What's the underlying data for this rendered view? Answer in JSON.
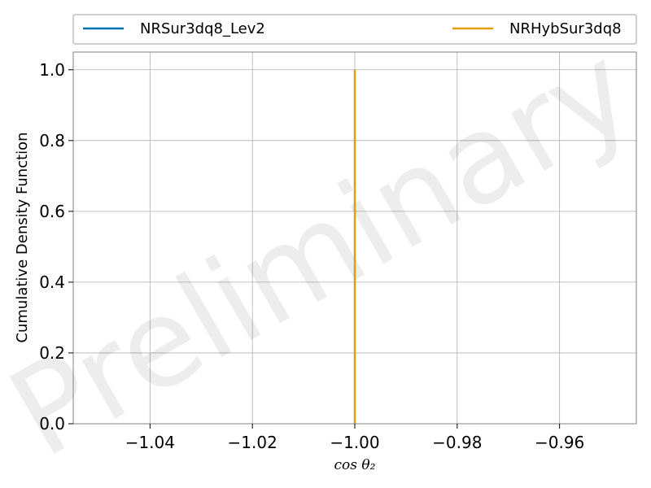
{
  "chart_data": {
    "type": "line",
    "title": "",
    "xlabel": "cos θ₂",
    "ylabel": "Cumulative Density Function",
    "xlim": [
      -1.055,
      -0.945
    ],
    "ylim": [
      0.0,
      1.05
    ],
    "x_ticks": [
      -1.04,
      -1.02,
      -1.0,
      -0.98,
      -0.96
    ],
    "x_tick_labels": [
      "−1.04",
      "−1.02",
      "−1.00",
      "−0.98",
      "−0.96"
    ],
    "y_ticks": [
      0.0,
      0.2,
      0.4,
      0.6,
      0.8,
      1.0
    ],
    "y_tick_labels": [
      "0.0",
      "0.2",
      "0.4",
      "0.6",
      "0.8",
      "1.0"
    ],
    "grid": true,
    "legend_position": "top",
    "watermark": "Preliminary",
    "series": [
      {
        "name": "NRSur3dq8_Lev2",
        "color": "#0072B2",
        "x": [
          -1.0,
          -1.0
        ],
        "y": [
          0.0,
          1.0
        ]
      },
      {
        "name": "NRHybSur3dq8",
        "color": "#E69F00",
        "x": [
          -1.0,
          -1.0
        ],
        "y": [
          0.0,
          1.0
        ]
      }
    ]
  }
}
